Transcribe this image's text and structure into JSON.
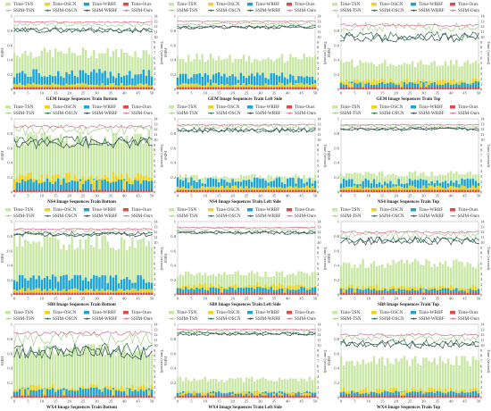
{
  "colors": {
    "time_tsn": "#c9e7a4",
    "time_oscn": "#f2d21a",
    "time_wrbf": "#1aa3d9",
    "time_ours": "#e2474b",
    "ssim_tsn": "#a8d08a",
    "ssim_oscn": "#2e7d4f",
    "ssim_wrbf": "#3f4f5b",
    "ssim_ours": "#d77aa2"
  },
  "legend": [
    {
      "key": "time_tsn",
      "label": "Time-TSN"
    },
    {
      "key": "time_oscn",
      "label": "Time-OSCN"
    },
    {
      "key": "time_wrbf",
      "label": "Time-WRBF"
    },
    {
      "key": "time_ours",
      "label": "Time-Ours"
    },
    {
      "key": "ssim_tsn",
      "label": "SSIM-TSN"
    },
    {
      "key": "ssim_oscn",
      "label": "SSIM-OSCN"
    },
    {
      "key": "ssim_wrbf",
      "label": "SSIM-WRBF"
    },
    {
      "key": "ssim_ours",
      "label": "SSIM-Ours"
    }
  ],
  "axes": {
    "left_title": "SSIM",
    "right_title": "Time (second)",
    "x_ticks": [
      "0",
      "5",
      "10",
      "15",
      "20",
      "25",
      "30",
      "35",
      "40",
      "45",
      "50"
    ],
    "left_ticks": [
      "0",
      "0.1",
      "0.2",
      "0.3",
      "0.4",
      "0.5",
      "0.6",
      "0.7",
      "0.8",
      "0.9",
      "1"
    ],
    "right_ticks": [
      "0",
      "1",
      "2",
      "3",
      "4",
      "5",
      "6",
      "7",
      "8",
      "9",
      "10",
      "11",
      "12",
      "13",
      "14"
    ]
  },
  "chart_data": [
    {
      "type": "bar",
      "title": "GEM Image Sequences Train Bottom",
      "xlim": [
        0,
        50
      ],
      "ylim": [
        0,
        1
      ],
      "y2lim": [
        0,
        14
      ],
      "tsn_time": 7.0,
      "oscn_time": 1.0,
      "wrbf_time": 3.0,
      "ours_time": 0.4,
      "tsn_ssim": 0.89,
      "oscn_ssim": 0.82,
      "wrbf_ssim": 0.81,
      "ours_ssim": 0.92,
      "noise": 0.03
    },
    {
      "type": "bar",
      "title": "GEM Image Sequences Train Left Side",
      "xlim": [
        0,
        50
      ],
      "ylim": [
        0,
        1
      ],
      "y2lim": [
        0,
        14
      ],
      "tsn_time": 6.0,
      "oscn_time": 1.0,
      "wrbf_time": 2.5,
      "ours_time": 0.4,
      "tsn_ssim": 0.9,
      "oscn_ssim": 0.86,
      "wrbf_ssim": 0.85,
      "ours_ssim": 0.93,
      "noise": 0.02
    },
    {
      "type": "bar",
      "title": "GEM Image Sequences Train Top",
      "xlim": [
        0,
        50
      ],
      "ylim": [
        0,
        1
      ],
      "y2lim": [
        0,
        14
      ],
      "tsn_time": 5.0,
      "oscn_time": 1.6,
      "wrbf_time": 1.2,
      "ours_time": 0.4,
      "tsn_ssim": 0.86,
      "oscn_ssim": 0.74,
      "wrbf_ssim": 0.72,
      "ours_ssim": 0.88,
      "noise": 0.06
    },
    {
      "type": "bar",
      "title": "NS4 Image Sequences Train Bottom",
      "xlim": [
        0,
        50
      ],
      "ylim": [
        0,
        1
      ],
      "y2lim": [
        0,
        14
      ],
      "tsn_time": 10.0,
      "oscn_time": 3.0,
      "wrbf_time": 2.0,
      "ours_time": 0.4,
      "tsn_ssim": 0.86,
      "oscn_ssim": 0.72,
      "wrbf_ssim": 0.68,
      "ours_ssim": 0.9,
      "noise": 0.07
    },
    {
      "type": "bar",
      "title": "NS4 Image Sequences Train Left Side",
      "xlim": [
        0,
        50
      ],
      "ylim": [
        0,
        1
      ],
      "y2lim": [
        0,
        14
      ],
      "tsn_time": 3.0,
      "oscn_time": 1.0,
      "wrbf_time": 2.2,
      "ours_time": 0.4,
      "tsn_ssim": 0.9,
      "oscn_ssim": 0.85,
      "wrbf_ssim": 0.85,
      "ours_ssim": 0.92,
      "noise": 0.03
    },
    {
      "type": "bar",
      "title": "NS4 Image Sequences Train Top",
      "xlim": [
        0,
        50
      ],
      "ylim": [
        0,
        1
      ],
      "y2lim": [
        0,
        14
      ],
      "tsn_time": 3.5,
      "oscn_time": 1.0,
      "wrbf_time": 2.0,
      "ours_time": 0.4,
      "tsn_ssim": 0.9,
      "oscn_ssim": 0.87,
      "wrbf_ssim": 0.86,
      "ours_ssim": 0.92,
      "noise": 0.02
    },
    {
      "type": "bar",
      "title": "SB8 Image Sequences Train Bottom",
      "xlim": [
        0,
        50
      ],
      "ylim": [
        0,
        1
      ],
      "y2lim": [
        0,
        14
      ],
      "tsn_time": 10.0,
      "oscn_time": 1.0,
      "wrbf_time": 3.0,
      "ours_time": 0.4,
      "tsn_ssim": 0.88,
      "oscn_ssim": 0.84,
      "wrbf_ssim": 0.83,
      "ours_ssim": 0.9,
      "noise": 0.03
    },
    {
      "type": "bar",
      "title": "SB8 Image Sequences Train Left Side",
      "xlim": [
        0,
        50
      ],
      "ylim": [
        0,
        1
      ],
      "y2lim": [
        0,
        14
      ],
      "tsn_time": 4.0,
      "oscn_time": 1.8,
      "wrbf_time": 1.2,
      "ours_time": 0.4,
      "tsn_ssim": 0.9,
      "oscn_ssim": 0.86,
      "wrbf_ssim": 0.85,
      "ours_ssim": 0.92,
      "noise": 0.02
    },
    {
      "type": "bar",
      "title": "SB8 Image Sequences Train Top",
      "xlim": [
        0,
        50
      ],
      "ylim": [
        0,
        1
      ],
      "y2lim": [
        0,
        14
      ],
      "tsn_time": 6.0,
      "oscn_time": 1.5,
      "wrbf_time": 1.0,
      "ours_time": 0.4,
      "tsn_ssim": 0.83,
      "oscn_ssim": 0.76,
      "wrbf_ssim": 0.74,
      "ours_ssim": 0.86,
      "noise": 0.05
    },
    {
      "type": "bar",
      "title": "WX4 Image Sequences Train Bottom",
      "xlim": [
        0,
        50
      ],
      "ylim": [
        0,
        1
      ],
      "y2lim": [
        0,
        14
      ],
      "tsn_time": 9.0,
      "oscn_time": 2.0,
      "wrbf_time": 1.5,
      "ours_time": 0.4,
      "tsn_ssim": 0.82,
      "oscn_ssim": 0.66,
      "wrbf_ssim": 0.64,
      "ours_ssim": 0.88,
      "noise": 0.1
    },
    {
      "type": "bar",
      "title": "WX4 Image Sequences Train Left Side",
      "xlim": [
        0,
        50
      ],
      "ylim": [
        0,
        1
      ],
      "y2lim": [
        0,
        14
      ],
      "tsn_time": 3.5,
      "oscn_time": 1.0,
      "wrbf_time": 1.0,
      "ours_time": 0.4,
      "tsn_ssim": 0.91,
      "oscn_ssim": 0.88,
      "wrbf_ssim": 0.87,
      "ours_ssim": 0.93,
      "noise": 0.02
    },
    {
      "type": "bar",
      "title": "WX4 Image Sequences Train Top",
      "xlim": [
        0,
        50
      ],
      "ylim": [
        0,
        1
      ],
      "y2lim": [
        0,
        14
      ],
      "tsn_time": 7.0,
      "oscn_time": 1.5,
      "wrbf_time": 1.0,
      "ours_time": 0.4,
      "tsn_ssim": 0.82,
      "oscn_ssim": 0.75,
      "wrbf_ssim": 0.73,
      "ours_ssim": 0.86,
      "noise": 0.05
    }
  ]
}
